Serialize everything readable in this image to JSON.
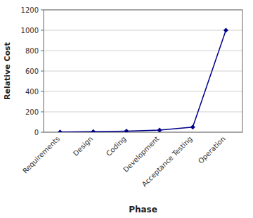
{
  "chart_data": {
    "type": "line",
    "categories": [
      "Requirements",
      "Design",
      "Coding",
      "Development",
      "Acceptance Testing",
      "Operation"
    ],
    "values": [
      1,
      5,
      10,
      20,
      50,
      1000
    ],
    "color": "#00008B",
    "marker": "diamond",
    "xlabel": "Phase",
    "ylabel": "Relative Cost",
    "ylim": [
      0,
      1200
    ],
    "yticks": [
      0,
      200,
      400,
      600,
      800,
      1000,
      1200
    ],
    "grid": true
  }
}
